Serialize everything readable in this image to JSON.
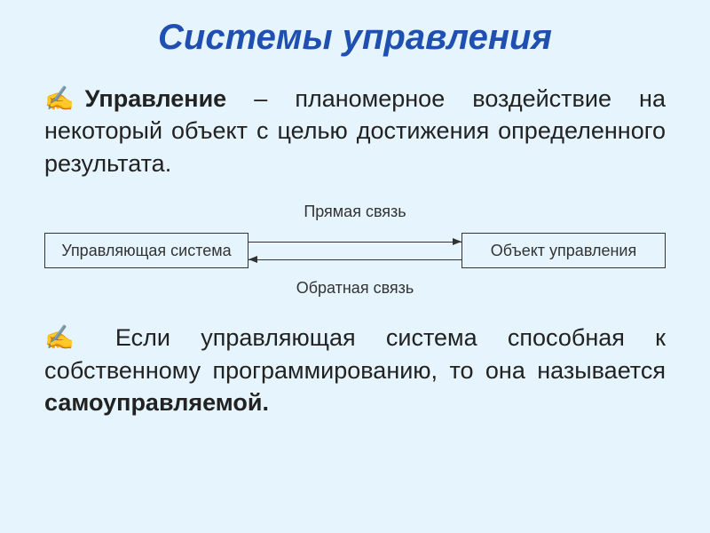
{
  "slide": {
    "background_color": "#e6f5fd",
    "title": {
      "text": "Системы управления",
      "color": "#1f4fb0",
      "fontsize": 40
    },
    "hand_icon": "✍",
    "para1": {
      "term": "Управление",
      "rest": " – планомерное воздействие на некоторый объект с целью достижения определенного результата.",
      "fontsize": 27,
      "color": "#222222"
    },
    "diagram": {
      "type": "flowchart",
      "box_left": "Управляющая система",
      "box_right": "Объект управления",
      "label_top": "Прямая связь",
      "label_bottom": "Обратная связь",
      "label_fontsize": 18,
      "box_fontsize": 18,
      "border_color": "#333333",
      "text_color": "#333333",
      "edges": [
        {
          "from": "box_left",
          "to": "box_right",
          "label": "label_top"
        },
        {
          "from": "box_right",
          "to": "box_left",
          "label": "label_bottom"
        }
      ]
    },
    "para2": {
      "plain1": " Если управляющая система способная к собственному программированию, то она называется ",
      "bold": "самоуправляемой.",
      "fontsize": 27,
      "color": "#222222"
    }
  }
}
